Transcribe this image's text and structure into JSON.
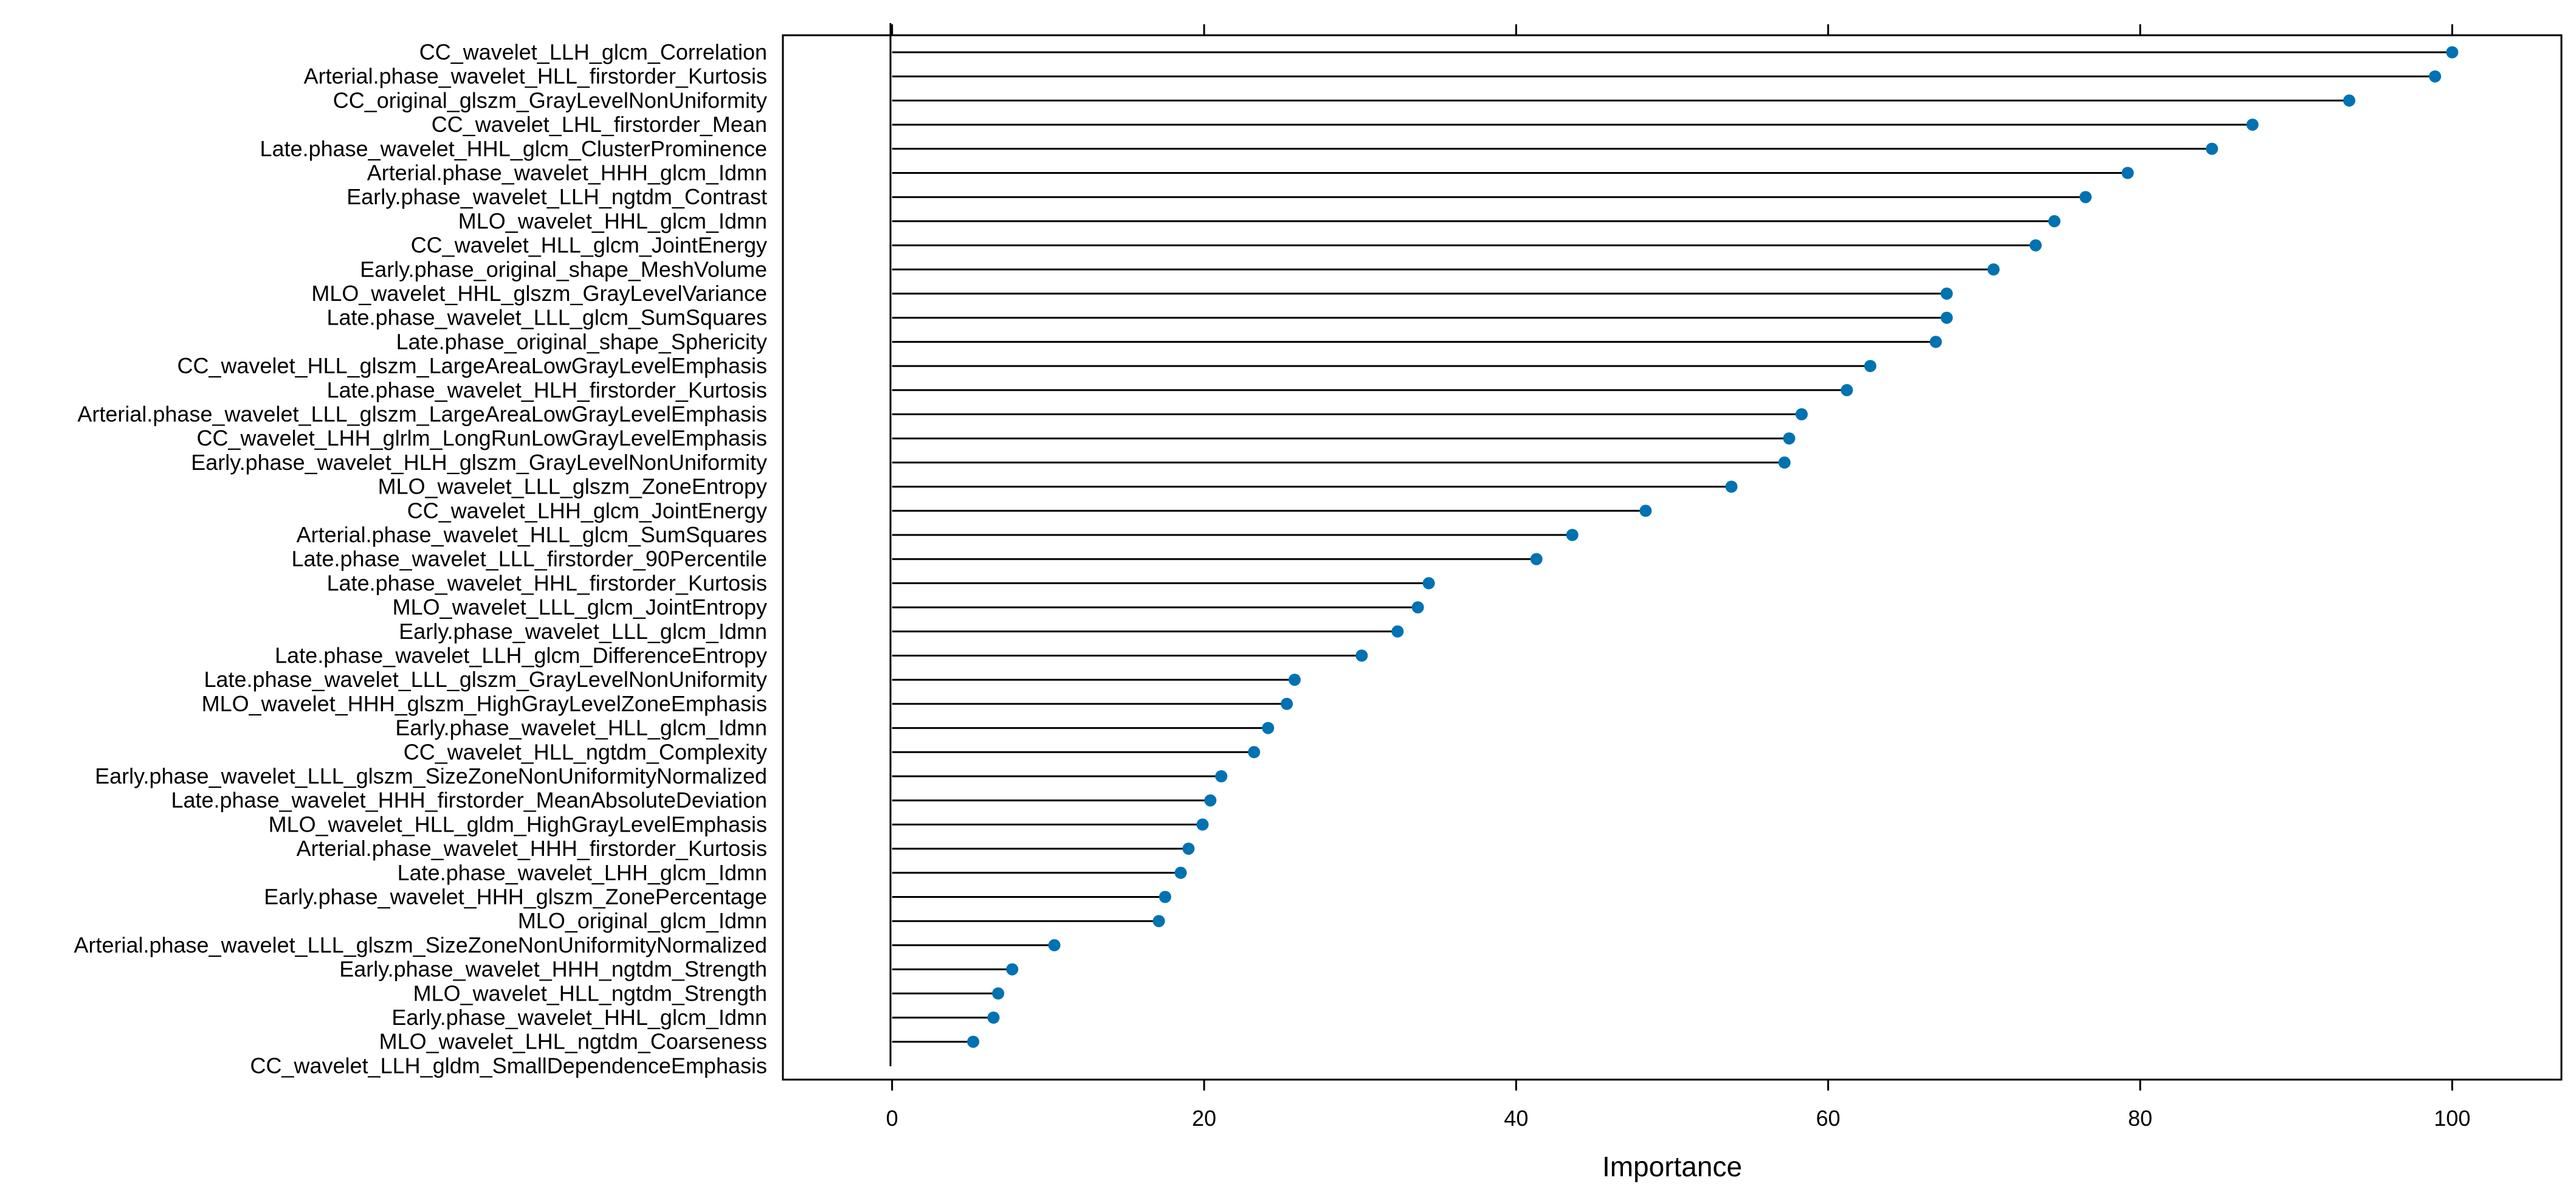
{
  "chart_data": {
    "type": "lollipop",
    "xlabel": "Importance",
    "xlim": [
      -7,
      107
    ],
    "x_ticks": [
      0,
      20,
      40,
      60,
      80,
      100
    ],
    "grid": false,
    "point_color": "#0072B2",
    "line_color": "#000000",
    "features": [
      {
        "name": "CC_wavelet_LLH_glcm_Correlation",
        "value": 100
      },
      {
        "name": "Arterial.phase_wavelet_HLL_firstorder_Kurtosis",
        "value": 98.9
      },
      {
        "name": "CC_original_glszm_GrayLevelNonUniformity",
        "value": 93.4
      },
      {
        "name": "CC_wavelet_LHL_firstorder_Mean",
        "value": 87.2
      },
      {
        "name": "Late.phase_wavelet_HHL_glcm_ClusterProminence",
        "value": 84.6
      },
      {
        "name": "Arterial.phase_wavelet_HHH_glcm_Idmn",
        "value": 79.2
      },
      {
        "name": "Early.phase_wavelet_LLH_ngtdm_Contrast",
        "value": 76.5
      },
      {
        "name": "MLO_wavelet_HHL_glcm_Idmn",
        "value": 74.5
      },
      {
        "name": "CC_wavelet_HLL_glcm_JointEnergy",
        "value": 73.3
      },
      {
        "name": "Early.phase_original_shape_MeshVolume",
        "value": 70.6
      },
      {
        "name": "MLO_wavelet_HHL_glszm_GrayLevelVariance",
        "value": 67.6
      },
      {
        "name": "Late.phase_wavelet_LLL_glcm_SumSquares",
        "value": 67.6
      },
      {
        "name": "Late.phase_original_shape_Sphericity",
        "value": 66.9
      },
      {
        "name": "CC_wavelet_HLL_glszm_LargeAreaLowGrayLevelEmphasis",
        "value": 62.7
      },
      {
        "name": "Late.phase_wavelet_HLH_firstorder_Kurtosis",
        "value": 61.2
      },
      {
        "name": "Arterial.phase_wavelet_LLL_glszm_LargeAreaLowGrayLevelEmphasis",
        "value": 58.3
      },
      {
        "name": "CC_wavelet_LHH_glrlm_LongRunLowGrayLevelEmphasis",
        "value": 57.5
      },
      {
        "name": "Early.phase_wavelet_HLH_glszm_GrayLevelNonUniformity",
        "value": 57.2
      },
      {
        "name": "MLO_wavelet_LLL_glszm_ZoneEntropy",
        "value": 53.8
      },
      {
        "name": "CC_wavelet_LHH_glcm_JointEnergy",
        "value": 48.3
      },
      {
        "name": "Arterial.phase_wavelet_HLL_glcm_SumSquares",
        "value": 43.6
      },
      {
        "name": "Late.phase_wavelet_LLL_firstorder_90Percentile",
        "value": 41.3
      },
      {
        "name": "Late.phase_wavelet_HHL_firstorder_Kurtosis",
        "value": 34.4
      },
      {
        "name": "MLO_wavelet_LLL_glcm_JointEntropy",
        "value": 33.7
      },
      {
        "name": "Early.phase_wavelet_LLL_glcm_Idmn",
        "value": 32.4
      },
      {
        "name": "Late.phase_wavelet_LLH_glcm_DifferenceEntropy",
        "value": 30.1
      },
      {
        "name": "Late.phase_wavelet_LLL_glszm_GrayLevelNonUniformity",
        "value": 25.8
      },
      {
        "name": "MLO_wavelet_HHH_glszm_HighGrayLevelZoneEmphasis",
        "value": 25.3
      },
      {
        "name": "Early.phase_wavelet_HLL_glcm_Idmn",
        "value": 24.1
      },
      {
        "name": "CC_wavelet_HLL_ngtdm_Complexity",
        "value": 23.2
      },
      {
        "name": "Early.phase_wavelet_LLL_glszm_SizeZoneNonUniformityNormalized",
        "value": 21.1
      },
      {
        "name": "Late.phase_wavelet_HHH_firstorder_MeanAbsoluteDeviation",
        "value": 20.4
      },
      {
        "name": "MLO_wavelet_HLL_gldm_HighGrayLevelEmphasis",
        "value": 19.9
      },
      {
        "name": "Arterial.phase_wavelet_HHH_firstorder_Kurtosis",
        "value": 19.0
      },
      {
        "name": "Late.phase_wavelet_LHH_glcm_Idmn",
        "value": 18.5
      },
      {
        "name": "Early.phase_wavelet_HHH_glszm_ZonePercentage",
        "value": 17.5
      },
      {
        "name": "MLO_original_glcm_Idmn",
        "value": 17.1
      },
      {
        "name": "Arterial.phase_wavelet_LLL_glszm_SizeZoneNonUniformityNormalized",
        "value": 10.4
      },
      {
        "name": "Early.phase_wavelet_HHH_ngtdm_Strength",
        "value": 7.7
      },
      {
        "name": "MLO_wavelet_HLL_ngtdm_Strength",
        "value": 6.8
      },
      {
        "name": "Early.phase_wavelet_HHL_glcm_Idmn",
        "value": 6.5
      },
      {
        "name": "MLO_wavelet_LHL_ngtdm_Coarseness",
        "value": 5.2
      },
      {
        "name": "CC_wavelet_LLH_gldm_SmallDependenceEmphasis",
        "value": 0
      }
    ]
  }
}
